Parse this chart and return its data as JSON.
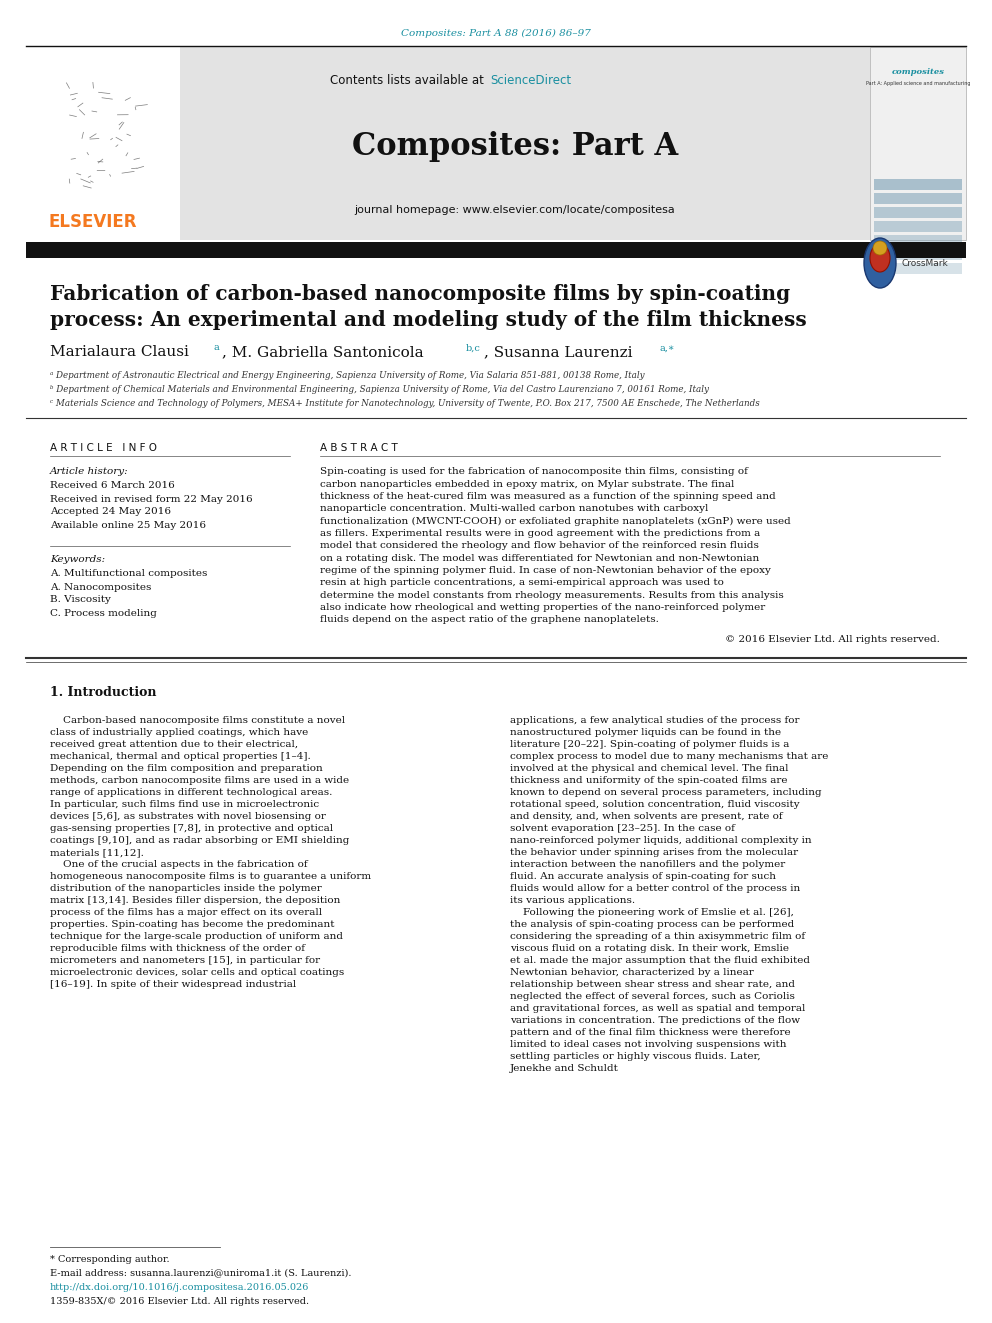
{
  "fig_width": 9.92,
  "fig_height": 13.23,
  "bg_color": "#ffffff",
  "top_citation": "Composites: Part A 88 (2016) 86–97",
  "top_citation_color": "#1a8fa0",
  "journal_name": "Composites: Part A",
  "contents_text": "Contents lists available at ",
  "sciencedirect_text": "ScienceDirect",
  "sciencedirect_color": "#1a8fa0",
  "journal_homepage": "journal homepage: www.elsevier.com/locate/compositesa",
  "header_bg": "#e3e3e3",
  "black_bar_color": "#111111",
  "paper_title_line1": "Fabrication of carbon-based nanocomposite films by spin-coating",
  "paper_title_line2": "process: An experimental and modeling study of the film thickness",
  "affil_a": "ᵃ Department of Astronautic Electrical and Energy Engineering, Sapienza University of Rome, Via Salaria 851-881, 00138 Rome, Italy",
  "affil_b": "ᵇ Department of Chemical Materials and Environmental Engineering, Sapienza University of Rome, Via del Castro Laurenziano 7, 00161 Rome, Italy",
  "affil_c": "ᶜ Materials Science and Technology of Polymers, MESA+ Institute for Nanotechnology, University of Twente, P.O. Box 217, 7500 AE Enschede, The Netherlands",
  "article_info_title": "ARTICLE INFO",
  "article_history_title": "Article history:",
  "article_history": [
    "Received 6 March 2016",
    "Received in revised form 22 May 2016",
    "Accepted 24 May 2016",
    "Available online 25 May 2016"
  ],
  "keywords_title": "Keywords:",
  "keywords": [
    "A. Multifunctional composites",
    "A. Nanocomposites",
    "B. Viscosity",
    "C. Process modeling"
  ],
  "abstract_title": "ABSTRACT",
  "abstract_text": "Spin-coating is used for the fabrication of nanocomposite thin films, consisting of carbon nanoparticles embedded in epoxy matrix, on Mylar substrate. The final thickness of the heat-cured film was measured as a function of the spinning speed and nanoparticle concentration. Multi-walled carbon nanotubes with carboxyl functionalization (MWCNT-COOH) or exfoliated graphite nanoplatelets (xGnP) were used as fillers. Experimental results were in good agreement with the predictions from a model that considered the rheology and flow behavior of the reinforced resin fluids on a rotating disk. The model was differentiated for Newtonian and non-Newtonian regime of the spinning polymer fluid. In case of non-Newtonian behavior of the epoxy resin at high particle concentrations, a semi-empirical approach was used to determine the model constants from rheology measurements. Results from this analysis also indicate how rheological and wetting properties of the nano-reinforced polymer fluids depend on the aspect ratio of the graphene nanoplatelets.",
  "copyright_text": "© 2016 Elsevier Ltd. All rights reserved.",
  "section1_title": "1. Introduction",
  "intro_col1": "    Carbon-based nanocomposite films constitute a novel class of industrially applied coatings, which have received great attention due to their electrical, mechanical, thermal and optical properties [1–4]. Depending on the film composition and preparation methods, carbon nanocomposite films are used in a wide range of applications in different technological areas. In particular, such films find use in microelectronic devices [5,6], as substrates with novel biosensing or gas-sensing properties [7,8], in protective and optical coatings [9,10], and as radar absorbing or EMI shielding materials [11,12].\n    One of the crucial aspects in the fabrication of homogeneous nanocomposite films is to guarantee a uniform distribution of the nanoparticles inside the polymer matrix [13,14]. Besides filler dispersion, the deposition process of the films has a major effect on its overall properties. Spin-coating has become the predominant technique for the large-scale production of uniform and reproducible films with thickness of the order of micrometers and nanometers [15], in particular for microelectronic devices, solar cells and optical coatings [16–19]. In spite of their widespread industrial",
  "intro_col2": "applications, a few analytical studies of the process for nanostructured polymer liquids can be found in the literature [20–22]. Spin-coating of polymer fluids is a complex process to model due to many mechanisms that are involved at the physical and chemical level. The final thickness and uniformity of the spin-coated films are known to depend on several process parameters, including rotational speed, solution concentration, fluid viscosity and density, and, when solvents are present, rate of solvent evaporation [23–25]. In the case of nano-reinforced polymer liquids, additional complexity in the behavior under spinning arises from the molecular interaction between the nanofillers and the polymer fluid. An accurate analysis of spin-coating for such fluids would allow for a better control of the process in its various applications.\n    Following the pioneering work of Emslie et al. [26], the analysis of spin-coating process can be performed considering the spreading of a thin axisymmetric film of viscous fluid on a rotating disk. In their work, Emslie et al. made the major assumption that the fluid exhibited Newtonian behavior, characterized by a linear relationship between shear stress and shear rate, and neglected the effect of several forces, such as Coriolis and gravitational forces, as well as spatial and temporal variations in concentration. The predictions of the flow pattern and of the final film thickness were therefore limited to ideal cases not involving suspensions with settling particles or highly viscous fluids. Later, Jenekhe and Schuldt",
  "footnote_star": "* Corresponding author.",
  "footnote_email": "E-mail address: susanna.laurenzi@uniroma1.it (S. Laurenzi).",
  "footnote_doi": "http://dx.doi.org/10.1016/j.compositesa.2016.05.026",
  "footnote_issn": "1359-835X/© 2016 Elsevier Ltd. All rights reserved.",
  "elsevier_color": "#f47920",
  "link_color": "#1a8fa0",
  "separator_color": "#555555",
  "text_color": "#111111"
}
